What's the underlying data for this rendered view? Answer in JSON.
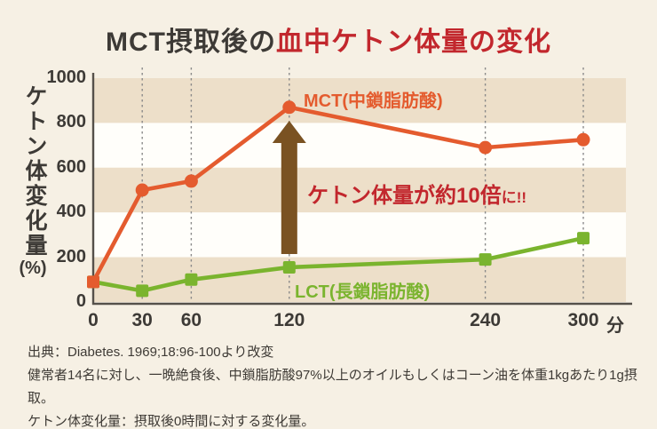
{
  "page": {
    "background": "#f6f0e4"
  },
  "title": {
    "prefix": "MCT摂取後の",
    "highlight": "血中ケトン体量の変化",
    "prefix_color": "#3d3a36",
    "highlight_color": "#c2272d"
  },
  "chart_data": {
    "type": "line",
    "x": [
      0,
      30,
      60,
      120,
      240,
      300
    ],
    "x_unit": "分",
    "xlim": [
      0,
      300
    ],
    "ylim": [
      0,
      1000
    ],
    "yticks": [
      0,
      200,
      400,
      600,
      800,
      1000
    ],
    "ylabel": "ケトン体変化量",
    "ylabel_unit": "(%)",
    "grid": "vertical-dashed",
    "legend_position": "inline-labels",
    "series": [
      {
        "name": "MCT(中鎖脂肪酸)",
        "color": "#e45b2e",
        "marker": "circle",
        "first_marker": "square",
        "values": [
          90,
          500,
          540,
          870,
          690,
          725
        ]
      },
      {
        "name": "LCT(長鎖脂肪酸)",
        "color": "#7ab42e",
        "marker": "square",
        "values": [
          90,
          50,
          100,
          155,
          190,
          285
        ]
      }
    ],
    "annotation": {
      "text_large": "ケトン体量が約10倍",
      "text_small": "に!!",
      "color": "#c2272d",
      "arrow_color": "#7a5222",
      "arrow_at_x": 120
    },
    "band_colors": {
      "beige": "#eddfc9",
      "white": "#fffefa"
    },
    "axis_color": "#55504a",
    "grid_color": "#8a8a8a",
    "tick_color": "#3d3a36"
  },
  "footer": {
    "lines": [
      "出典：Diabetes. 1969;18:96-100より改変",
      "健常者14名に対し、一晩絶食後、中鎖脂肪酸97%以上のオイルもしくはコーン油を体重1kgあたり1g摂取。",
      "ケトン体変化量：摂取後0時間に対する変化量。"
    ]
  }
}
